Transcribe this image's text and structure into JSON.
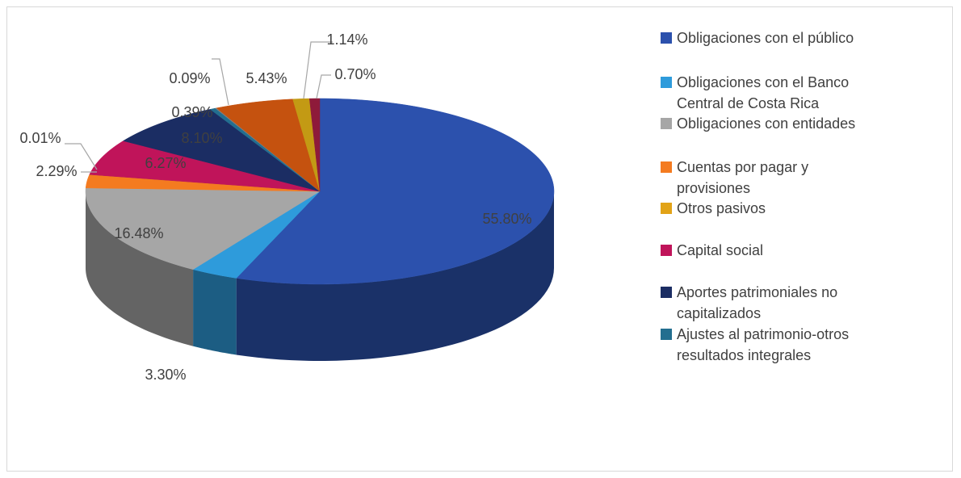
{
  "chart_data": {
    "type": "pie3d",
    "categories": [
      "Obligaciones con el público",
      "Obligaciones con el Banco Central de Costa Rica",
      "Obligaciones con entidades",
      "Cuentas por pagar y provisiones",
      "Otros pasivos",
      "Capital social",
      "Aportes patrimoniales no capitalizados",
      "Ajustes al patrimonio-otros resultados integrales",
      null,
      null,
      null,
      null
    ],
    "values": [
      55.8,
      3.3,
      16.48,
      2.29,
      0.01,
      6.27,
      8.1,
      0.39,
      0.09,
      5.43,
      1.14,
      0.7
    ],
    "value_labels": [
      "55.80%",
      "3.30%",
      "16.48%",
      "2.29%",
      "0.01%",
      "6.27%",
      "8.10%",
      "0.39%",
      "0.09%",
      "5.43%",
      "1.14%",
      "0.70%"
    ],
    "colors": [
      "#2c51ad",
      "#2e9bdb",
      "#a6a6a6",
      "#f47b20",
      "#e2a317",
      "#c0145a",
      "#1b2d63",
      "#236e8f",
      "#7f7f7f",
      "#c5520f",
      "#c39a14",
      "#8e1a3a"
    ]
  }
}
